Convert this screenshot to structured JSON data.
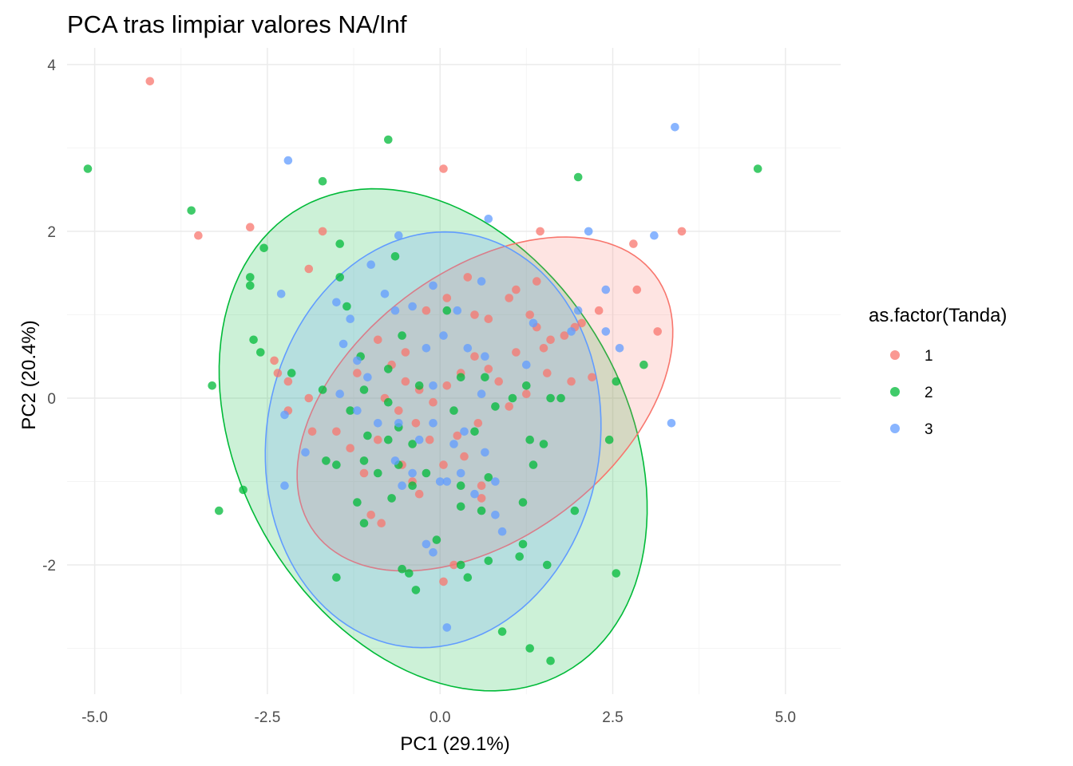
{
  "chart_data": {
    "type": "scatter",
    "title": "PCA tras limpiar valores NA/Inf",
    "xlabel": "PC1 (29.1%)",
    "ylabel": "PC2 (20.4%)",
    "xlim": [
      -5.4,
      5.8
    ],
    "ylim": [
      -3.55,
      4.2
    ],
    "x_ticks": [
      -5.0,
      -2.5,
      0.0,
      2.5,
      5.0
    ],
    "x_tick_labels": [
      "-5.0",
      "-2.5",
      "0.0",
      "2.5",
      "5.0"
    ],
    "y_ticks": [
      -2,
      0,
      2,
      4
    ],
    "y_tick_labels": [
      "-2",
      "0",
      "2",
      "4"
    ],
    "grid": true,
    "legend": {
      "title": "as.factor(Tanda)",
      "position": "right"
    },
    "series": [
      {
        "name": "1",
        "color": "#F8766D",
        "ellipse": {
          "cx": 0.65,
          "cy": -0.07,
          "rx": 2.93,
          "ry": 1.68,
          "angle_deg": 27
        },
        "points": [
          [
            -4.2,
            3.8
          ],
          [
            -3.5,
            1.95
          ],
          [
            -2.75,
            2.05
          ],
          [
            -1.7,
            2.0
          ],
          [
            0.05,
            2.75
          ],
          [
            1.45,
            2.0
          ],
          [
            2.8,
            1.85
          ],
          [
            3.5,
            2.0
          ],
          [
            2.85,
            1.3
          ],
          [
            1.4,
            1.4
          ],
          [
            0.4,
            1.45
          ],
          [
            3.15,
            0.8
          ],
          [
            2.05,
            0.9
          ],
          [
            2.3,
            1.05
          ],
          [
            1.95,
            0.85
          ],
          [
            1.8,
            0.75
          ],
          [
            1.6,
            0.7
          ],
          [
            1.5,
            0.6
          ],
          [
            -1.9,
            1.55
          ],
          [
            -2.4,
            0.45
          ],
          [
            -2.35,
            0.3
          ],
          [
            -2.2,
            0.2
          ],
          [
            -1.9,
            0.0
          ],
          [
            -2.2,
            -0.15
          ],
          [
            -1.85,
            -0.4
          ],
          [
            -1.2,
            0.3
          ],
          [
            -0.9,
            0.7
          ],
          [
            -0.5,
            0.55
          ],
          [
            -0.2,
            1.05
          ],
          [
            0.1,
            1.2
          ],
          [
            0.5,
            1.0
          ],
          [
            0.7,
            0.95
          ],
          [
            1.0,
            1.2
          ],
          [
            1.1,
            1.3
          ],
          [
            1.3,
            1.0
          ],
          [
            1.4,
            0.85
          ],
          [
            1.1,
            0.55
          ],
          [
            0.7,
            0.35
          ],
          [
            0.5,
            0.5
          ],
          [
            0.3,
            0.3
          ],
          [
            0.1,
            0.15
          ],
          [
            -0.1,
            -0.05
          ],
          [
            -0.3,
            0.1
          ],
          [
            -0.5,
            0.2
          ],
          [
            -0.7,
            0.4
          ],
          [
            -0.8,
            0.0
          ],
          [
            -0.6,
            -0.15
          ],
          [
            -0.35,
            -0.3
          ],
          [
            -0.15,
            -0.5
          ],
          [
            0.05,
            -0.8
          ],
          [
            0.35,
            -0.7
          ],
          [
            0.6,
            -1.05
          ],
          [
            -0.3,
            -1.15
          ],
          [
            -0.55,
            -0.8
          ],
          [
            -0.9,
            -0.5
          ],
          [
            -1.1,
            -0.9
          ],
          [
            -1.3,
            -0.6
          ],
          [
            -1.5,
            -0.4
          ],
          [
            -0.85,
            -1.5
          ],
          [
            -1.0,
            -1.4
          ],
          [
            0.05,
            -2.2
          ],
          [
            0.2,
            -2.0
          ],
          [
            0.6,
            -1.2
          ],
          [
            1.0,
            -0.1
          ],
          [
            1.25,
            0.05
          ],
          [
            1.55,
            0.3
          ],
          [
            1.9,
            0.2
          ],
          [
            2.2,
            0.25
          ],
          [
            0.85,
            0.2
          ],
          [
            0.55,
            -0.3
          ],
          [
            -0.4,
            -1.0
          ],
          [
            0.25,
            -0.45
          ]
        ]
      },
      {
        "name": "2",
        "color": "#00BA38",
        "ellipse": {
          "cx": -0.1,
          "cy": -0.5,
          "rx": 3.45,
          "ry": 2.6,
          "angle_deg": -42
        },
        "points": [
          [
            -5.1,
            2.75
          ],
          [
            -3.6,
            2.25
          ],
          [
            -1.7,
            2.6
          ],
          [
            -0.75,
            3.1
          ],
          [
            2.0,
            2.65
          ],
          [
            4.6,
            2.75
          ],
          [
            -2.55,
            1.8
          ],
          [
            -2.75,
            1.45
          ],
          [
            -2.75,
            1.35
          ],
          [
            -1.45,
            1.45
          ],
          [
            -1.45,
            1.85
          ],
          [
            -0.65,
            1.7
          ],
          [
            -2.7,
            0.7
          ],
          [
            -2.6,
            0.55
          ],
          [
            -2.15,
            0.3
          ],
          [
            -3.3,
            0.15
          ],
          [
            -1.35,
            1.1
          ],
          [
            -1.15,
            0.5
          ],
          [
            -0.75,
            0.35
          ],
          [
            -1.7,
            0.1
          ],
          [
            -1.1,
            0.1
          ],
          [
            -1.3,
            -0.15
          ],
          [
            -1.05,
            -0.45
          ],
          [
            -0.75,
            -0.5
          ],
          [
            -0.6,
            -0.35
          ],
          [
            -0.4,
            -0.55
          ],
          [
            -0.6,
            -0.8
          ],
          [
            -1.5,
            -0.8
          ],
          [
            -1.65,
            -0.75
          ],
          [
            -1.1,
            -0.75
          ],
          [
            -0.9,
            -0.9
          ],
          [
            -2.85,
            -1.1
          ],
          [
            -3.2,
            -1.35
          ],
          [
            -1.2,
            -1.25
          ],
          [
            -1.1,
            -1.5
          ],
          [
            -0.7,
            -1.2
          ],
          [
            -0.4,
            -1.05
          ],
          [
            0.3,
            -1.05
          ],
          [
            0.3,
            -1.3
          ],
          [
            0.6,
            -1.35
          ],
          [
            1.2,
            -1.25
          ],
          [
            1.35,
            -0.8
          ],
          [
            1.3,
            -0.5
          ],
          [
            1.5,
            -0.55
          ],
          [
            1.75,
            0.0
          ],
          [
            2.55,
            0.2
          ],
          [
            2.95,
            0.4
          ],
          [
            2.45,
            -0.5
          ],
          [
            1.25,
            0.15
          ],
          [
            1.05,
            0.0
          ],
          [
            0.65,
            0.25
          ],
          [
            0.1,
            1.05
          ],
          [
            0.8,
            -0.1
          ],
          [
            0.2,
            -0.15
          ],
          [
            0.5,
            -0.4
          ],
          [
            0.7,
            -0.95
          ],
          [
            -0.2,
            -0.9
          ],
          [
            -0.55,
            -2.05
          ],
          [
            -0.45,
            -2.1
          ],
          [
            -0.35,
            -2.3
          ],
          [
            0.3,
            -2.0
          ],
          [
            0.4,
            -2.15
          ],
          [
            0.7,
            -1.95
          ],
          [
            1.15,
            -1.9
          ],
          [
            1.2,
            -1.75
          ],
          [
            1.55,
            -2.0
          ],
          [
            2.55,
            -2.1
          ],
          [
            1.95,
            -1.35
          ],
          [
            0.9,
            -2.8
          ],
          [
            1.3,
            -3.0
          ],
          [
            1.6,
            -3.15
          ],
          [
            -1.5,
            -2.15
          ],
          [
            -0.05,
            -1.7
          ],
          [
            -0.75,
            -0.05
          ],
          [
            -0.3,
            0.15
          ],
          [
            -0.55,
            0.75
          ],
          [
            0.3,
            0.25
          ],
          [
            1.6,
            0.0
          ]
        ]
      },
      {
        "name": "3",
        "color": "#619CFF",
        "ellipse": {
          "cx": -0.1,
          "cy": -0.5,
          "rx": 2.37,
          "ry": 2.55,
          "angle_deg": -35
        },
        "points": [
          [
            -2.2,
            2.85
          ],
          [
            3.4,
            3.25
          ],
          [
            0.7,
            2.15
          ],
          [
            2.15,
            2.0
          ],
          [
            3.1,
            1.95
          ],
          [
            -0.6,
            1.95
          ],
          [
            -2.3,
            1.25
          ],
          [
            -1.5,
            1.15
          ],
          [
            -0.8,
            1.25
          ],
          [
            -1.0,
            1.6
          ],
          [
            -0.65,
            1.05
          ],
          [
            -0.4,
            1.1
          ],
          [
            -0.1,
            1.35
          ],
          [
            0.25,
            1.05
          ],
          [
            0.6,
            1.4
          ],
          [
            2.0,
            1.05
          ],
          [
            2.4,
            1.3
          ],
          [
            2.4,
            0.8
          ],
          [
            2.6,
            0.6
          ],
          [
            1.9,
            0.8
          ],
          [
            1.35,
            0.9
          ],
          [
            -1.4,
            0.65
          ],
          [
            -1.2,
            0.45
          ],
          [
            -1.05,
            0.25
          ],
          [
            -0.2,
            0.6
          ],
          [
            0.05,
            0.75
          ],
          [
            0.4,
            0.6
          ],
          [
            0.65,
            0.5
          ],
          [
            1.25,
            0.4
          ],
          [
            -1.45,
            0.05
          ],
          [
            -1.2,
            -0.15
          ],
          [
            -0.9,
            -0.3
          ],
          [
            -0.6,
            -0.3
          ],
          [
            -0.3,
            -0.5
          ],
          [
            0.2,
            -0.55
          ],
          [
            0.35,
            -0.4
          ],
          [
            -0.1,
            -0.3
          ],
          [
            -1.95,
            -0.65
          ],
          [
            -0.65,
            -0.75
          ],
          [
            -0.4,
            -0.9
          ],
          [
            0.0,
            -1.0
          ],
          [
            0.3,
            -0.9
          ],
          [
            0.65,
            -0.65
          ],
          [
            0.8,
            -1.0
          ],
          [
            -2.25,
            -0.2
          ],
          [
            -2.25,
            -1.05
          ],
          [
            -0.55,
            -1.05
          ],
          [
            0.1,
            -1.0
          ],
          [
            0.5,
            -1.15
          ],
          [
            0.8,
            -1.4
          ],
          [
            0.9,
            -1.6
          ],
          [
            -0.2,
            -1.75
          ],
          [
            -0.1,
            -1.85
          ],
          [
            0.1,
            -2.75
          ],
          [
            3.35,
            -0.3
          ],
          [
            -1.3,
            0.95
          ],
          [
            -0.1,
            0.15
          ],
          [
            0.6,
            0.05
          ]
        ]
      }
    ]
  }
}
